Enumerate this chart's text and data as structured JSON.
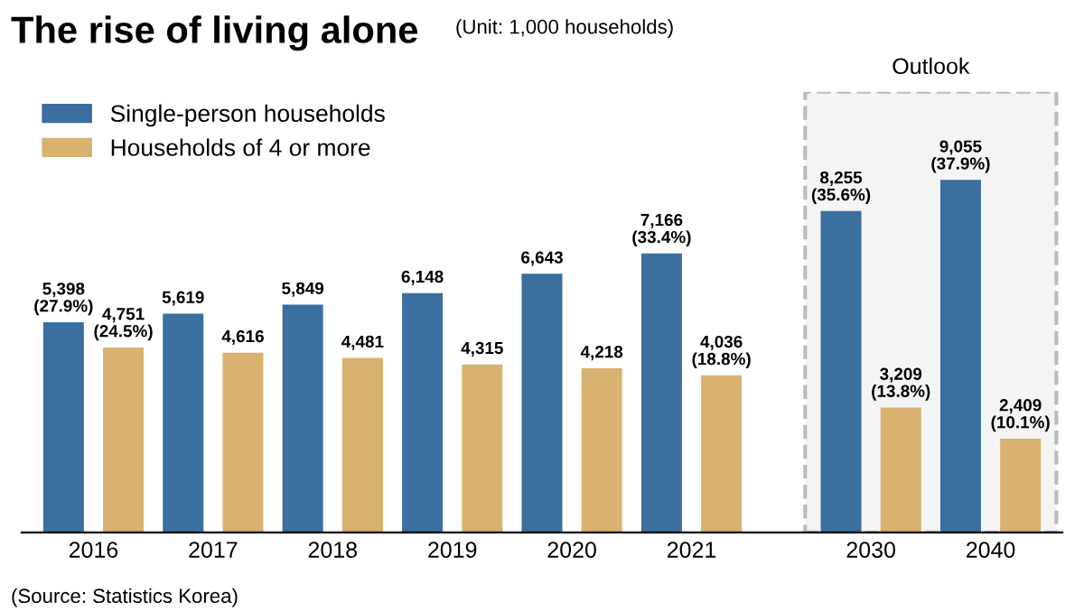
{
  "chart_data": {
    "type": "bar",
    "title": "The rise of living alone",
    "subtitle": "(Unit: 1,000 households)",
    "categories": [
      "2016",
      "2017",
      "2018",
      "2019",
      "2020",
      "2021",
      "2030",
      "2040"
    ],
    "series": [
      {
        "name": "Single-person households",
        "color": "#3a6f9f",
        "values": [
          5398,
          5619,
          5849,
          6148,
          6643,
          7166,
          8255,
          9055
        ],
        "value_labels": [
          "5,398\n(27.9%)",
          "5,619",
          "5,849",
          "6,148",
          "6,643",
          "7,166\n(33.4%)",
          "8,255\n(35.6%)",
          "9,055\n(37.9%)"
        ]
      },
      {
        "name": "Households of 4 or more",
        "color": "#d9b26f",
        "values": [
          4751,
          4616,
          4481,
          4315,
          4218,
          4036,
          3209,
          2409
        ],
        "value_labels": [
          "4,751\n(24.5%)",
          "4,616",
          "4,481",
          "4,315",
          "4,218",
          "4,036\n(18.8%)",
          "3,209\n(13.8%)",
          "2,409\n(10.1%)"
        ]
      }
    ],
    "bands": [
      {
        "axis": "x",
        "from": "2030",
        "to": "2040",
        "label": "Outlook"
      }
    ],
    "annotations": [
      "(Source: Statistics Korea)"
    ],
    "legend": "top left",
    "grid": false
  }
}
